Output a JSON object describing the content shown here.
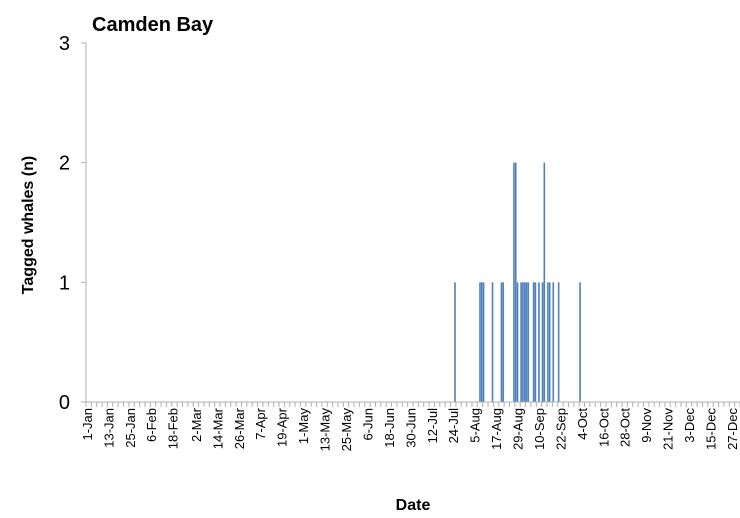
{
  "chart_data": {
    "type": "bar",
    "title": "Camden Bay",
    "xlabel": "Date",
    "ylabel": "Tagged whales (n)",
    "ylim": [
      0,
      3
    ],
    "yticks": [
      0,
      1,
      2,
      3
    ],
    "grid": false,
    "bar_color": "#4f81bd",
    "x_tick_labels": [
      "1-Jan",
      "13-Jan",
      "25-Jan",
      "6-Feb",
      "18-Feb",
      "2-Mar",
      "14-Mar",
      "26-Mar",
      "7-Apr",
      "19-Apr",
      "1-May",
      "13-May",
      "25-May",
      "6-Jun",
      "18-Jun",
      "30-Jun",
      "12-Jul",
      "24-Jul",
      "5-Aug",
      "17-Aug",
      "29-Aug",
      "10-Sep",
      "22-Sep",
      "4-Oct",
      "16-Oct",
      "28-Oct",
      "9-Nov",
      "21-Nov",
      "3-Dec",
      "15-Dec",
      "27-Dec"
    ],
    "x_axis_start": "1-Jan",
    "x_axis_end": "31-Dec",
    "points": [
      {
        "date": "25-Jul",
        "value": 1
      },
      {
        "date": "8-Aug",
        "value": 1
      },
      {
        "date": "9-Aug",
        "value": 1
      },
      {
        "date": "10-Aug",
        "value": 1
      },
      {
        "date": "15-Aug",
        "value": 1
      },
      {
        "date": "20-Aug",
        "value": 1
      },
      {
        "date": "21-Aug",
        "value": 1
      },
      {
        "date": "27-Aug",
        "value": 2
      },
      {
        "date": "28-Aug",
        "value": 2
      },
      {
        "date": "29-Aug",
        "value": 1
      },
      {
        "date": "31-Aug",
        "value": 1
      },
      {
        "date": "1-Sep",
        "value": 1
      },
      {
        "date": "2-Sep",
        "value": 1
      },
      {
        "date": "3-Sep",
        "value": 1
      },
      {
        "date": "4-Sep",
        "value": 1
      },
      {
        "date": "7-Sep",
        "value": 1
      },
      {
        "date": "8-Sep",
        "value": 1
      },
      {
        "date": "10-Sep",
        "value": 1
      },
      {
        "date": "12-Sep",
        "value": 1
      },
      {
        "date": "13-Sep",
        "value": 2
      },
      {
        "date": "15-Sep",
        "value": 1
      },
      {
        "date": "16-Sep",
        "value": 1
      },
      {
        "date": "18-Sep",
        "value": 1
      },
      {
        "date": "21-Sep",
        "value": 1
      },
      {
        "date": "3-Oct",
        "value": 1
      }
    ]
  }
}
